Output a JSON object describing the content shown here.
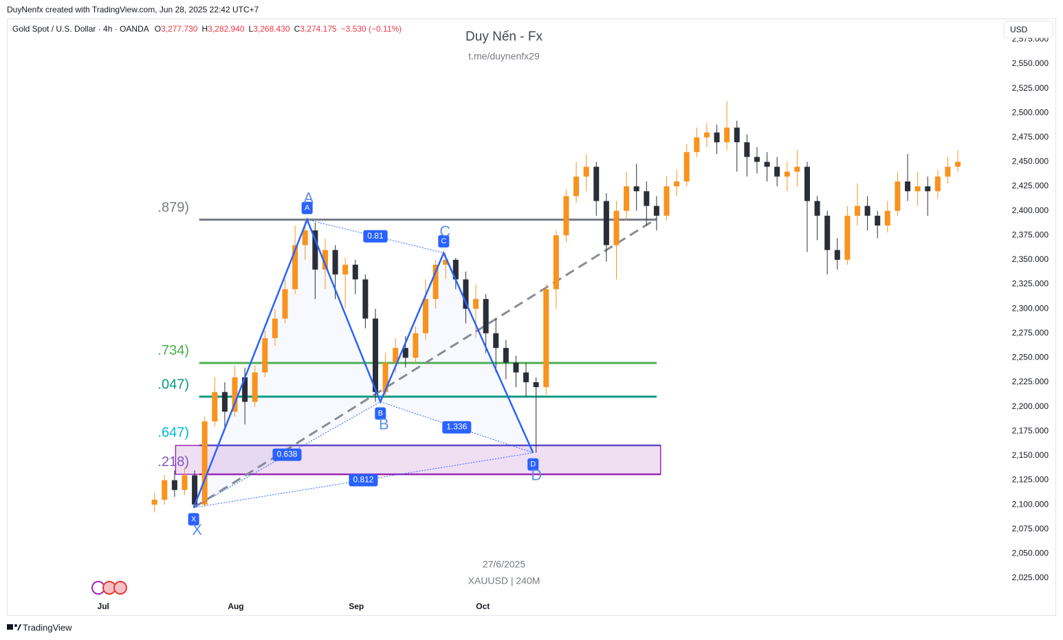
{
  "header": "DuyNenfx created with TradingView.com, Jun 28, 2025 22:42 UTC+7",
  "footer": "TradingView",
  "currency_button": "USD",
  "legend": {
    "symbol": "Gold Spot / U.S. Dollar · 4h · OANDA",
    "items": [
      {
        "key": "O",
        "value": "3,277.730"
      },
      {
        "key": "H",
        "value": "3,282.940"
      },
      {
        "key": "L",
        "value": "3,268.430"
      },
      {
        "key": "C",
        "value": "3,274.175"
      }
    ],
    "change": "−3.530 (−0.11%)"
  },
  "watermark": {
    "title": "Duy Nến - Fx",
    "subtitle": "t.me/duynenfx29",
    "date": "27/6/2025",
    "ticker": "XAUUSD | 240M"
  },
  "chart_data": {
    "type": "candlestick",
    "up_color": "#f7931e",
    "down_color": "#2a2e39",
    "xlim": [
      -14.7,
      83.9
    ],
    "ylim": [
      1987.1,
      2596.3
    ],
    "xticks": [
      {
        "value": -5.1,
        "label": "Jul"
      },
      {
        "value": 8.1,
        "label": "Aug"
      },
      {
        "value": 20.1,
        "label": "Sep"
      },
      {
        "value": 32.7,
        "label": "Oct"
      }
    ],
    "yticks": [
      {
        "value": 2025,
        "label": "2,025.000"
      },
      {
        "value": 2050,
        "label": "2,050.000"
      },
      {
        "value": 2075,
        "label": "2,075.000"
      },
      {
        "value": 2100,
        "label": "2,100.000"
      },
      {
        "value": 2125,
        "label": "2,125.000"
      },
      {
        "value": 2150,
        "label": "2,150.000"
      },
      {
        "value": 2175,
        "label": "2,175.000"
      },
      {
        "value": 2200,
        "label": "2,200.000"
      },
      {
        "value": 2225,
        "label": "2,225.000"
      },
      {
        "value": 2250,
        "label": "2,250.000"
      },
      {
        "value": 2275,
        "label": "2,275.000"
      },
      {
        "value": 2300,
        "label": "2,300.000"
      },
      {
        "value": 2325,
        "label": "2,325.000"
      },
      {
        "value": 2350,
        "label": "2,350.000"
      },
      {
        "value": 2375,
        "label": "2,375.000"
      },
      {
        "value": 2400,
        "label": "2,400.000"
      },
      {
        "value": 2425,
        "label": "2,425.000"
      },
      {
        "value": 2450,
        "label": "2,450.000"
      },
      {
        "value": 2475,
        "label": "2,475.000"
      },
      {
        "value": 2500,
        "label": "2,500.000"
      },
      {
        "value": 2525,
        "label": "2,525.000"
      },
      {
        "value": 2550,
        "label": "2,550.000"
      },
      {
        "value": 2575,
        "label": "2,575.000"
      }
    ],
    "open": [
      2100,
      2105,
      2125,
      2115,
      2130,
      2100,
      2185,
      2215,
      2195,
      2230,
      2205,
      2235,
      2270,
      2290,
      2320,
      2365,
      2380,
      2340,
      2360,
      2335,
      2345,
      2330,
      2290,
      2215,
      2245,
      2260,
      2250,
      2275,
      2310,
      2345,
      2350,
      2330,
      2300,
      2310,
      2275,
      2260,
      2245,
      2235,
      2225,
      2220,
      2320,
      2375,
      2415,
      2435,
      2445,
      2410,
      2365,
      2400,
      2425,
      2420,
      2405,
      2395,
      2425,
      2430,
      2460,
      2475,
      2480,
      2470,
      2485,
      2470,
      2455,
      2450,
      2445,
      2435,
      2440,
      2445,
      2410,
      2395,
      2360,
      2350,
      2395,
      2405,
      2395,
      2385,
      2400,
      2430,
      2420,
      2425,
      2420,
      2435,
      2445
    ],
    "high": [
      2112,
      2130,
      2135,
      2138,
      2135,
      2190,
      2230,
      2225,
      2242,
      2240,
      2242,
      2278,
      2300,
      2330,
      2385,
      2391,
      2388,
      2372,
      2365,
      2352,
      2350,
      2335,
      2300,
      2255,
      2270,
      2272,
      2282,
      2330,
      2350,
      2357,
      2352,
      2338,
      2325,
      2315,
      2290,
      2268,
      2252,
      2245,
      2230,
      2325,
      2380,
      2422,
      2450,
      2458,
      2450,
      2418,
      2410,
      2440,
      2448,
      2430,
      2415,
      2435,
      2442,
      2468,
      2485,
      2490,
      2488,
      2512,
      2492,
      2478,
      2465,
      2460,
      2455,
      2450,
      2462,
      2450,
      2415,
      2400,
      2372,
      2405,
      2428,
      2415,
      2400,
      2410,
      2440,
      2458,
      2440,
      2435,
      2442,
      2455,
      2462
    ],
    "low": [
      2092,
      2100,
      2108,
      2110,
      2097,
      2098,
      2180,
      2178,
      2190,
      2182,
      2200,
      2230,
      2262,
      2285,
      2315,
      2350,
      2310,
      2320,
      2310,
      2300,
      2315,
      2280,
      2205,
      2210,
      2235,
      2240,
      2245,
      2268,
      2300,
      2330,
      2320,
      2285,
      2270,
      2255,
      2235,
      2228,
      2220,
      2210,
      2153,
      2212,
      2300,
      2368,
      2408,
      2420,
      2395,
      2348,
      2330,
      2390,
      2400,
      2385,
      2380,
      2390,
      2415,
      2425,
      2455,
      2465,
      2458,
      2462,
      2440,
      2435,
      2438,
      2430,
      2425,
      2420,
      2425,
      2358,
      2370,
      2335,
      2340,
      2345,
      2385,
      2380,
      2372,
      2378,
      2395,
      2410,
      2405,
      2395,
      2412,
      2428,
      2440
    ],
    "close": [
      2105,
      2125,
      2115,
      2130,
      2100,
      2185,
      2215,
      2195,
      2230,
      2205,
      2235,
      2270,
      2290,
      2320,
      2365,
      2380,
      2340,
      2360,
      2335,
      2345,
      2330,
      2290,
      2215,
      2245,
      2260,
      2250,
      2275,
      2310,
      2345,
      2350,
      2330,
      2300,
      2310,
      2275,
      2260,
      2245,
      2235,
      2225,
      2220,
      2320,
      2375,
      2415,
      2435,
      2445,
      2410,
      2365,
      2400,
      2425,
      2420,
      2405,
      2395,
      2425,
      2430,
      2460,
      2475,
      2480,
      2470,
      2485,
      2470,
      2455,
      2450,
      2445,
      2435,
      2440,
      2445,
      2410,
      2395,
      2360,
      2350,
      2395,
      2405,
      2395,
      2385,
      2400,
      2430,
      2420,
      2425,
      2420,
      2435,
      2445,
      2450
    ],
    "fib_levels": [
      {
        "label": ".879)",
        "price": 2391,
        "color": "#787b86",
        "line": true
      },
      {
        "label": ".734)",
        "price": 2244.7,
        "color": "#4caf50",
        "line": true
      },
      {
        "label": ".047)",
        "price": 2210.3,
        "color": "#089981",
        "line": true
      },
      {
        "label": ".647)",
        "price": 2173,
        "color": "#00bcd4",
        "line": false
      },
      {
        "label": ".218)",
        "price": 2143,
        "color": "#7e57c2",
        "line": false
      }
    ],
    "fib_start": 4.45,
    "fib_end": 50,
    "zone": {
      "top": 2160.5,
      "bottom": 2131,
      "start": 2.1,
      "end": 50.4
    },
    "trend_line": {
      "from": [
        3.9,
        2097
      ],
      "to": [
        50,
        2392
      ]
    },
    "pattern_points": [
      {
        "label": "X",
        "x": 3.9,
        "price": 2097
      },
      {
        "label": "A",
        "x": 15.2,
        "price": 2391
      },
      {
        "label": "B",
        "x": 22.5,
        "price": 2205
      },
      {
        "label": "C",
        "x": 28.8,
        "price": 2357
      },
      {
        "label": "D",
        "x": 37.7,
        "price": 2153
      }
    ],
    "ratios": [
      "0.81",
      "0.638",
      "1.336",
      "0.812"
    ]
  }
}
